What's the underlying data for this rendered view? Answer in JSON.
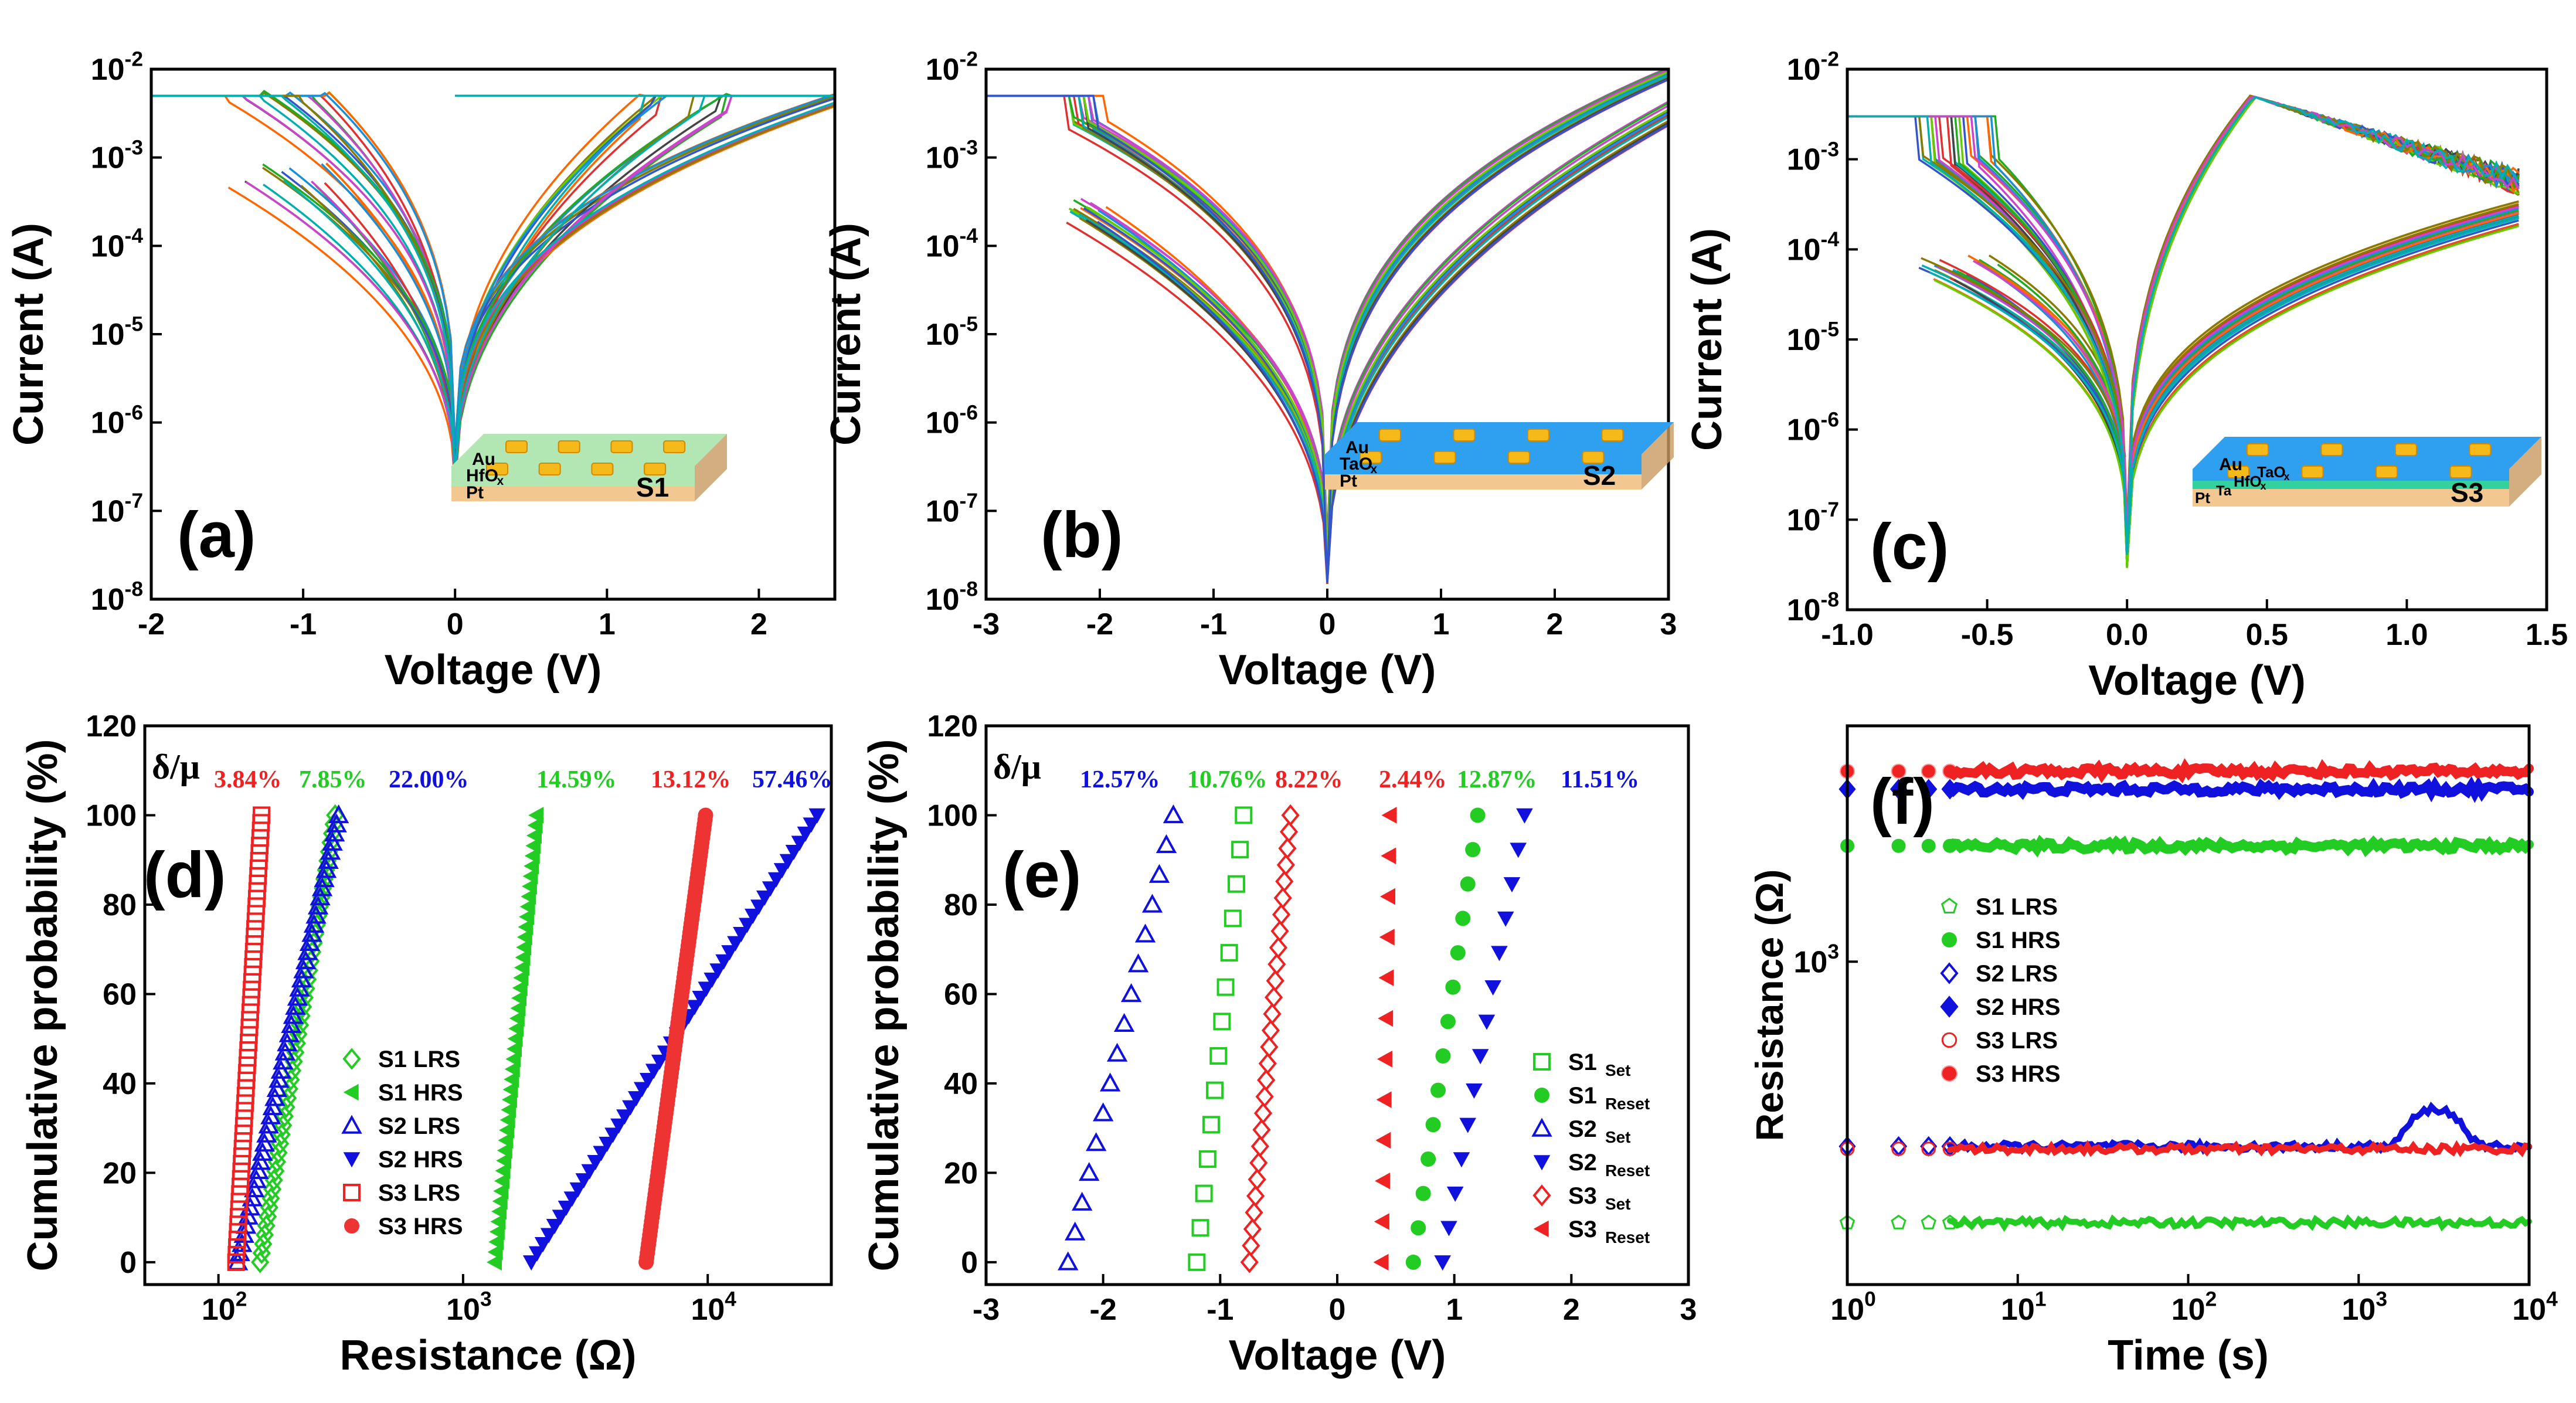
{
  "chart_data": [
    {
      "panel": "(a)",
      "type": "line",
      "xlabel": "Voltage (V)",
      "ylabel": "Current (A)",
      "xlim": [
        -2,
        2.5
      ],
      "ylim_log10": [
        -8,
        -2
      ],
      "xticks": [
        "-2",
        "-1",
        "0",
        "1",
        "2"
      ],
      "yticks": [
        {
          "b": "10",
          "e": "-8"
        },
        {
          "b": "10",
          "e": "-7"
        },
        {
          "b": "10",
          "e": "-6"
        },
        {
          "b": "10",
          "e": "-5"
        },
        {
          "b": "10",
          "e": "-4"
        },
        {
          "b": "10",
          "e": "-3"
        },
        {
          "b": "10",
          "e": "-2"
        }
      ],
      "compliance_current": 0.005,
      "set_voltage_range": [
        1.2,
        1.8
      ],
      "reset_voltage_range": [
        -1.6,
        -0.8
      ],
      "min_current": 3e-07,
      "inset": {
        "layers": [
          "Au",
          "HfO",
          "Pt"
        ],
        "sample": "S1",
        "oxide_sub": "x",
        "top_color": "#b2e6b2"
      }
    },
    {
      "panel": "(b)",
      "type": "line",
      "xlabel": "Voltage (V)",
      "ylabel": "Current (A)",
      "xlim": [
        -3,
        3
      ],
      "ylim_log10": [
        -8,
        -2
      ],
      "xticks": [
        "-3",
        "-2",
        "-1",
        "0",
        "1",
        "2",
        "3"
      ],
      "yticks": [
        {
          "b": "10",
          "e": "-8"
        },
        {
          "b": "10",
          "e": "-7"
        },
        {
          "b": "10",
          "e": "-6"
        },
        {
          "b": "10",
          "e": "-5"
        },
        {
          "b": "10",
          "e": "-4"
        },
        {
          "b": "10",
          "e": "-3"
        },
        {
          "b": "10",
          "e": "-2"
        }
      ],
      "compliance_current": 0.005,
      "reset_voltage_range": [
        -2.3,
        -1.9
      ],
      "max_positive_current": 0.008,
      "inset": {
        "layers": [
          "Au",
          "TaO",
          "Pt"
        ],
        "sample": "S2",
        "oxide_sub": "x",
        "top_color": "#2f9ff0"
      }
    },
    {
      "panel": "(c)",
      "type": "line",
      "xlabel": "Voltage (V)",
      "ylabel": "Current (A)",
      "xlim": [
        -1.0,
        1.5
      ],
      "ylim_log10": [
        -8,
        -2
      ],
      "xticks": [
        "-1.0",
        "-0.5",
        "0.0",
        "0.5",
        "1.0",
        "1.5"
      ],
      "yticks": [
        {
          "b": "10",
          "e": "-8"
        },
        {
          "b": "10",
          "e": "-7"
        },
        {
          "b": "10",
          "e": "-6"
        },
        {
          "b": "10",
          "e": "-5"
        },
        {
          "b": "10",
          "e": "-4"
        },
        {
          "b": "10",
          "e": "-3"
        },
        {
          "b": "10",
          "e": "-2"
        }
      ],
      "compliance_current": 0.003,
      "reset_voltage_range": [
        -0.75,
        -0.45
      ],
      "peak_positive_current": 0.005,
      "inset": {
        "layers": [
          "Au",
          "TaO",
          "HfO",
          "Ta",
          "Pt"
        ],
        "sample": "S3",
        "oxide_sub": "x",
        "top_color": "#2f9ff0"
      }
    },
    {
      "panel": "(d)",
      "type": "scatter",
      "xlabel": "Resistance (Ω)",
      "ylabel": "Cumulative probability (%)",
      "xscale": "log",
      "xlim": [
        50,
        32000
      ],
      "ylim": [
        -5,
        120
      ],
      "xticks": [
        {
          "b": "10",
          "e": "2"
        },
        {
          "b": "10",
          "e": "3"
        },
        {
          "b": "10",
          "e": "4"
        }
      ],
      "yticks": [
        "0",
        "20",
        "40",
        "60",
        "80",
        "100",
        "120"
      ],
      "stat_label": "δ/μ",
      "stats": [
        {
          "text": "3.84%",
          "color": "#ee2222"
        },
        {
          "text": "7.85%",
          "color": "#22cc22"
        },
        {
          "text": "22.00%",
          "color": "#1111dd"
        },
        {
          "text": "14.59%",
          "color": "#22cc22"
        },
        {
          "text": "13.12%",
          "color": "#ee2222"
        },
        {
          "text": "57.46%",
          "color": "#1111dd"
        }
      ],
      "series": [
        {
          "name": "S1  LRS",
          "marker": "diamond-open",
          "color": "#22cc22",
          "range": [
            148,
            300
          ],
          "count": 50
        },
        {
          "name": "S1  HRS",
          "marker": "tri-left-filled",
          "color": "#22cc22",
          "range": [
            1350,
            2000
          ],
          "count": 45
        },
        {
          "name": "S2  LRS",
          "marker": "tri-up-open",
          "color": "#1111dd",
          "range": [
            120,
            310
          ],
          "count": 50
        },
        {
          "name": "S2  HRS",
          "marker": "tri-down-filled",
          "color": "#1111dd",
          "range": [
            1900,
            28000
          ],
          "count": 50
        },
        {
          "name": "S3 LRS",
          "marker": "square-open",
          "color": "#ee2222",
          "range": [
            118,
            150
          ],
          "count": 60
        },
        {
          "name": "S3 HRS",
          "marker": "circle-filled",
          "color": "#ee3333",
          "range": [
            5600,
            9800
          ],
          "count": 100
        }
      ]
    },
    {
      "panel": "(e)",
      "type": "scatter",
      "xlabel": "Voltage (V)",
      "ylabel": "Cumulative probability (%)",
      "xlim": [
        -3,
        3
      ],
      "ylim": [
        -5,
        120
      ],
      "xticks": [
        "-3",
        "-2",
        "-1",
        "0",
        "1",
        "2",
        "3"
      ],
      "yticks": [
        "0",
        "20",
        "40",
        "60",
        "80",
        "100",
        "120"
      ],
      "stat_label": "δ/μ",
      "stats": [
        {
          "text": "12.57%",
          "color": "#1111dd"
        },
        {
          "text": "10.76%",
          "color": "#22cc22"
        },
        {
          "text": "8.22%",
          "color": "#ee2222"
        },
        {
          "text": "2.44%",
          "color": "#ee2222"
        },
        {
          "text": "12.87%",
          "color": "#22cc22"
        },
        {
          "text": "11.51%",
          "color": "#1111dd"
        }
      ],
      "series": [
        {
          "name": "S1",
          "sub": "Set",
          "marker": "square-open",
          "color": "#22cc22",
          "range": [
            -1.2,
            -0.8
          ],
          "count": 14
        },
        {
          "name": "S1",
          "sub": "Reset",
          "marker": "circle-filled",
          "color": "#22cc22",
          "range": [
            0.65,
            1.2
          ],
          "count": 14
        },
        {
          "name": "S2",
          "sub": "Set",
          "marker": "tri-up-open",
          "color": "#1111dd",
          "range": [
            -2.3,
            -1.4
          ],
          "count": 16
        },
        {
          "name": "S2",
          "sub": "Reset",
          "marker": "tri-down-filled",
          "color": "#1111dd",
          "range": [
            0.9,
            1.6
          ],
          "count": 14
        },
        {
          "name": "S3",
          "sub": "Set",
          "marker": "diamond-open",
          "color": "#ee2222",
          "range": [
            -0.75,
            -0.4
          ],
          "count": 28
        },
        {
          "name": "S3",
          "sub": "Reset",
          "marker": "tri-left-filled",
          "color": "#ee2222",
          "range": [
            0.38,
            0.45
          ],
          "count": 12
        }
      ]
    },
    {
      "panel": "(f)",
      "type": "scatter",
      "xlabel": "Time (s)",
      "ylabel": "Resistance (Ω)",
      "xscale": "log",
      "yscale": "log",
      "xlim": [
        1,
        10000
      ],
      "ylim": [
        180,
        3500
      ],
      "xticks": [
        {
          "b": "10",
          "e": "0"
        },
        {
          "b": "10",
          "e": "1"
        },
        {
          "b": "10",
          "e": "2"
        },
        {
          "b": "10",
          "e": "3"
        },
        {
          "b": "10",
          "e": "4"
        }
      ],
      "yticks": [
        {
          "b": "10",
          "e": "3"
        }
      ],
      "series": [
        {
          "name": "S1 LRS",
          "marker": "pentagon-open",
          "color": "#22cc22",
          "value": 250
        },
        {
          "name": "S1 HRS",
          "marker": "circle-filled",
          "color": "#22cc22",
          "value": 1850
        },
        {
          "name": "S2 LRS",
          "marker": "diamond-open",
          "color": "#1111dd",
          "value": 375
        },
        {
          "name": "S2 HRS",
          "marker": "diamond-filled",
          "color": "#1111dd",
          "value": 2500
        },
        {
          "name": "S3 LRS",
          "marker": "circle-open",
          "color": "#ee2222",
          "value": 370
        },
        {
          "name": "S3 HRS",
          "marker": "circle-half",
          "color": "#ee2222",
          "value": 2750
        }
      ]
    }
  ],
  "palette": [
    "#22aa22",
    "#ff6600",
    "#1a8fd8",
    "#8a7a00",
    "#cc44cc",
    "#00b0b0",
    "#444444",
    "#e03030",
    "#66cc00",
    "#3355cc"
  ]
}
